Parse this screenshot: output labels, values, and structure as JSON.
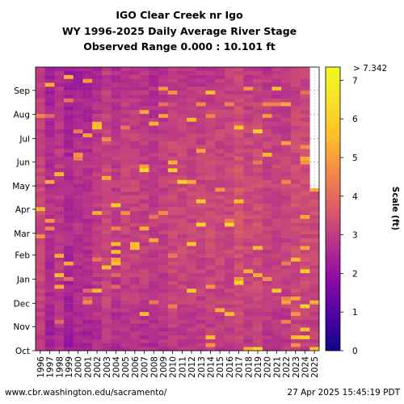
{
  "chart_data": {
    "type": "heatmap",
    "title": [
      "IGO Clear Creek nr Igo",
      "WY 1996-2025 Daily Average River Stage",
      "Observed Range 0.000 : 10.101 ft"
    ],
    "x_categories": [
      "1996",
      "1997",
      "1998",
      "1999",
      "2000",
      "2001",
      "2002",
      "2003",
      "2004",
      "2005",
      "2006",
      "2007",
      "2008",
      "2009",
      "2010",
      "2011",
      "2012",
      "2013",
      "2014",
      "2015",
      "2016",
      "2017",
      "2018",
      "2019",
      "2020",
      "2021",
      "2022",
      "2023",
      "2024",
      "2025"
    ],
    "y_categories": [
      "Oct",
      "Nov",
      "Dec",
      "Jan",
      "Feb",
      "Mar",
      "Apr",
      "May",
      "Jun",
      "Jul",
      "Aug",
      "Sep"
    ],
    "colorbar": {
      "label": "Scale (ft)",
      "range": [
        0,
        7.342
      ],
      "ticks": [
        "0",
        "1",
        "2",
        "3",
        "4",
        "5",
        "6",
        "7"
      ],
      "max_label": "> 7.342",
      "colormap": "plasma"
    },
    "approx_typical_stage_ft": {
      "1996": 2.9,
      "1997": 2.3,
      "1998": 2.6,
      "1999": 2.2,
      "2000": 2.4,
      "2001": 2.4,
      "2002": 2.6,
      "2003": 2.9,
      "2004": 2.6,
      "2005": 2.8,
      "2006": 2.8,
      "2007": 2.7,
      "2008": 2.6,
      "2009": 2.7,
      "2010": 2.9,
      "2011": 2.9,
      "2012": 2.8,
      "2013": 2.8,
      "2014": 2.9,
      "2015": 2.9,
      "2016": 2.9,
      "2017": 3.1,
      "2018": 2.9,
      "2019": 3.0,
      "2020": 2.8,
      "2021": 2.8,
      "2022": 2.8,
      "2023": 3.0,
      "2024": 3.0,
      "2025": 3.0
    },
    "grid": true
  },
  "footer": {
    "source": "www.cbr.washington.edu/sacramento/",
    "timestamp": "27 Apr 2025 15:45:19 PDT"
  }
}
